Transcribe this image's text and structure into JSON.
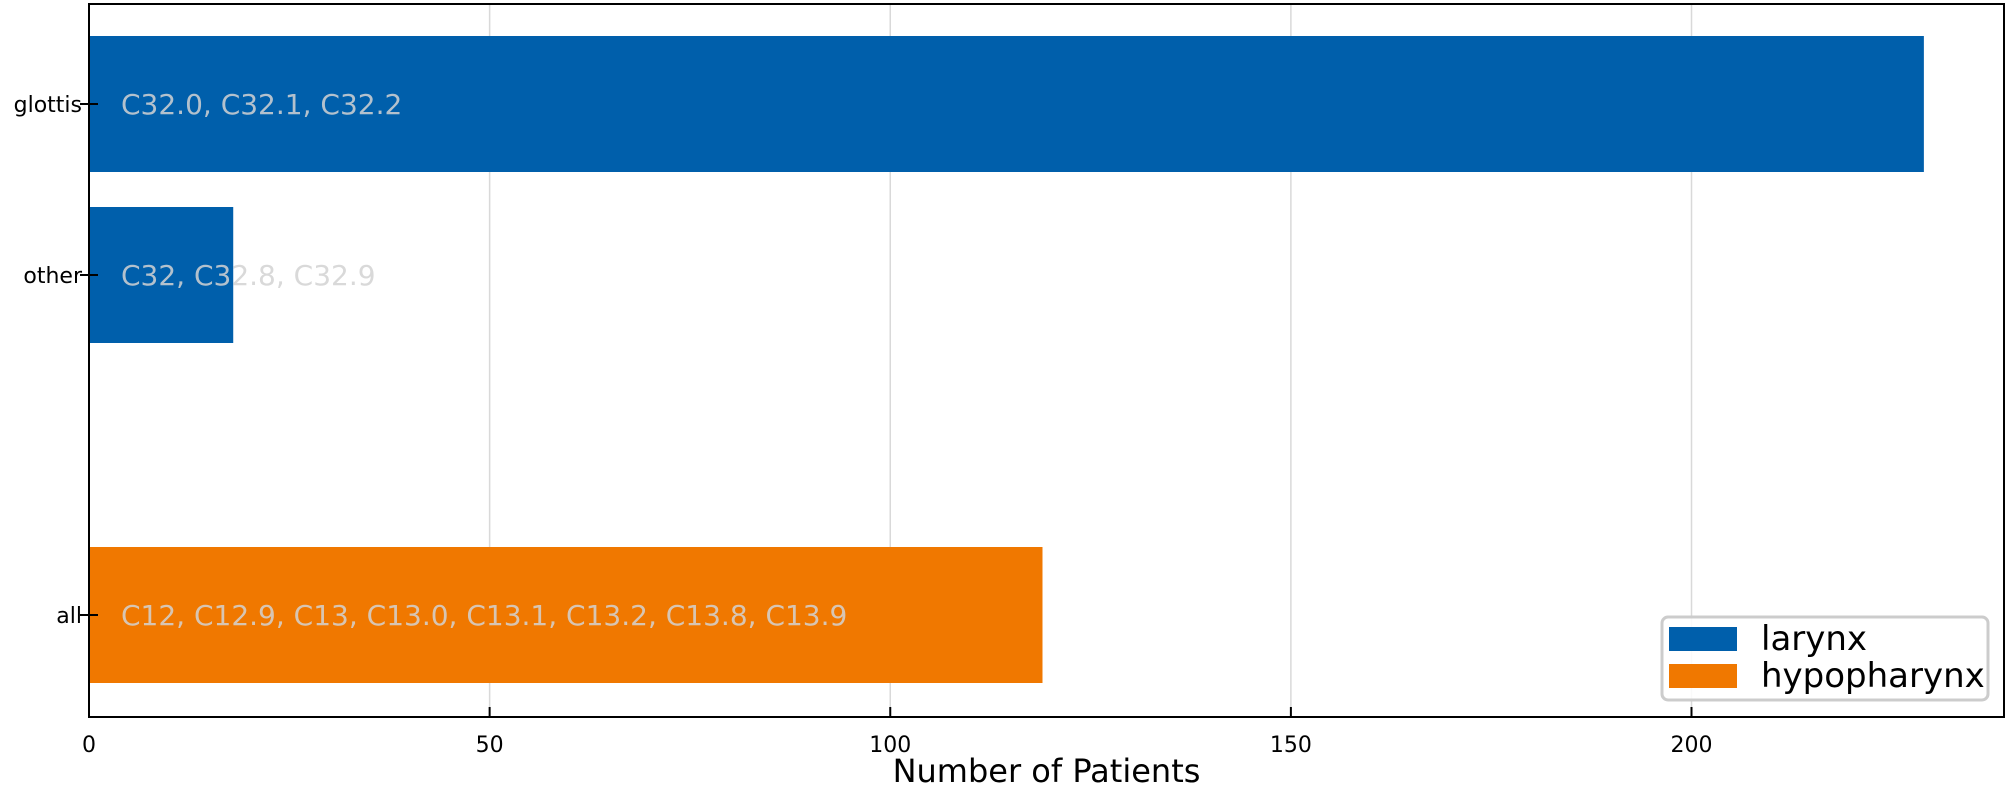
{
  "chart_data": {
    "type": "bar",
    "orientation": "horizontal",
    "xlabel": "Number of Patients",
    "xlim": [
      0,
      239
    ],
    "xticks": [
      0,
      50,
      100,
      150,
      200
    ],
    "grid": "x",
    "legend_position": "bottom-right",
    "categories": [
      "glottis",
      "other",
      "all"
    ],
    "series": [
      {
        "name": "larynx",
        "color": "#005fab",
        "bars": [
          {
            "category": "glottis",
            "value": 229,
            "label": "C32.0, C32.1, C32.2"
          },
          {
            "category": "other",
            "value": 18,
            "label": "C32, C32.8, C32.9"
          }
        ]
      },
      {
        "name": "hypopharynx",
        "color": "#f07800",
        "bars": [
          {
            "category": "all",
            "value": 119,
            "label": "C12, C12.9, C13, C13.0, C13.1, C13.2, C13.8, C13.9"
          }
        ]
      }
    ]
  }
}
